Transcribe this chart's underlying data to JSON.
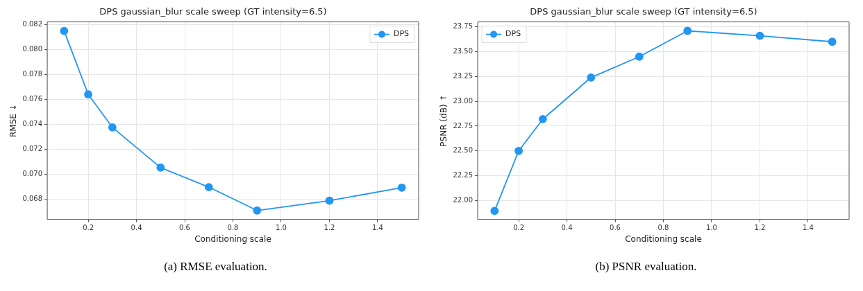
{
  "chart_data": [
    {
      "type": "line",
      "title": "DPS gaussian_blur scale sweep (GT intensity=6.5)",
      "xlabel": "Conditioning scale",
      "ylabel": "RMSE ↓",
      "x": [
        0.1,
        0.2,
        0.3,
        0.5,
        0.7,
        0.9,
        1.2,
        1.5
      ],
      "series": [
        {
          "name": "DPS",
          "color": "#2196f3",
          "values": [
            0.08148,
            0.0764,
            0.07376,
            0.07054,
            0.06898,
            0.06711,
            0.0679,
            0.06894
          ]
        }
      ],
      "xlim": [
        0.03,
        1.57
      ],
      "xticks": [
        0.2,
        0.4,
        0.6,
        0.8,
        {
          "value": 1.0,
          "label": "1.0"
        },
        1.2,
        1.4
      ],
      "ylim": [
        0.0664,
        0.0822
      ],
      "yticks": [
        {
          "value": 0.068,
          "label": "0.068"
        },
        {
          "value": 0.07,
          "label": "0.070"
        },
        {
          "value": 0.072,
          "label": "0.072"
        },
        {
          "value": 0.074,
          "label": "0.074"
        },
        {
          "value": 0.076,
          "label": "0.076"
        },
        {
          "value": 0.078,
          "label": "0.078"
        },
        {
          "value": 0.08,
          "label": "0.080"
        },
        {
          "value": 0.082,
          "label": "0.082"
        }
      ],
      "grid": true,
      "legend": "top right",
      "marker": "circle",
      "line_style": "solid",
      "annotations": [
        "(a) RMSE evaluation."
      ]
    },
    {
      "type": "line",
      "title": "DPS gaussian_blur scale sweep (GT intensity=6.5)",
      "xlabel": "Conditioning scale",
      "ylabel": "PSNR (dB) ↑",
      "x": [
        0.1,
        0.2,
        0.3,
        0.5,
        0.7,
        0.9,
        1.2,
        1.5
      ],
      "series": [
        {
          "name": "DPS",
          "color": "#2196f3",
          "values": [
            21.895,
            22.5,
            22.82,
            23.24,
            23.45,
            23.71,
            23.66,
            23.6
          ]
        }
      ],
      "xlim": [
        0.03,
        1.57
      ],
      "xticks": [
        0.2,
        0.4,
        0.6,
        0.8,
        {
          "value": 1.0,
          "label": "1.0"
        },
        1.2,
        1.4
      ],
      "ylim": [
        21.81,
        23.8
      ],
      "yticks": [
        {
          "value": 22,
          "label": "22.00"
        },
        22.25,
        {
          "value": 22.5,
          "label": "22.50"
        },
        22.75,
        {
          "value": 23,
          "label": "23.00"
        },
        23.25,
        {
          "value": 23.5,
          "label": "23.50"
        },
        23.75
      ],
      "grid": true,
      "legend": "top left",
      "marker": "circle",
      "line_style": "solid",
      "annotations": [
        "(b) PSNR evaluation."
      ]
    }
  ]
}
